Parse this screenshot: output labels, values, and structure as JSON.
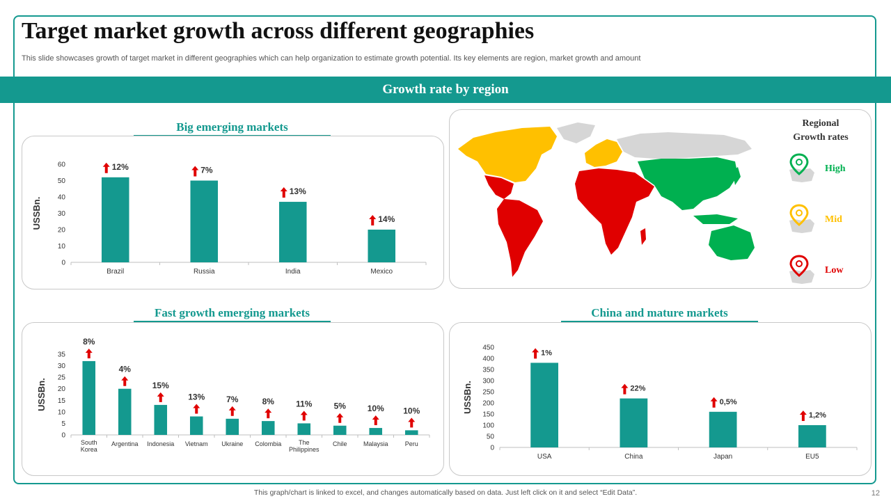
{
  "title": "Target market growth across different geographies",
  "subtitle": "This slide showcases growth of target market in different geographies which can help organization to estimate growth potential. Its key elements are region, market growth and amount",
  "banner": "Growth rate by region",
  "sections": {
    "big": "Big emerging markets",
    "fast": "Fast growth emerging markets",
    "mature": "China and mature markets"
  },
  "legend": {
    "title_line1": "Regional",
    "title_line2": "Growth  rates",
    "items": [
      {
        "label": "High",
        "color": "#00b050"
      },
      {
        "label": "Mid",
        "color": "#ffc000"
      },
      {
        "label": "Low",
        "color": "#e00000"
      }
    ]
  },
  "colors": {
    "bar": "#14998f",
    "arrow": "#e00000",
    "accent": "#14998f"
  },
  "footer": "This graph/chart is linked to excel,  and changes automatically based on data. Just left click on it and select “Edit Data”.",
  "page_number": "12",
  "chart_data": [
    {
      "type": "bar",
      "categories": [
        "Brazil",
        "Russia",
        "India",
        "Mexico"
      ],
      "values": [
        52,
        50,
        37,
        20
      ],
      "annotations": [
        "12%",
        "7%",
        "13%",
        "14%"
      ],
      "ylabel": "USSBn.",
      "ylim": [
        0,
        60
      ],
      "yticks": [
        0,
        10,
        20,
        30,
        40,
        50,
        60
      ]
    },
    {
      "type": "bar",
      "categories": [
        "South Korea",
        "Argentina",
        "Indonesia",
        "Vietnam",
        "Ukraine",
        "Colombia",
        "The Philippines",
        "Chile",
        "Malaysia",
        "Peru"
      ],
      "values": [
        32,
        20,
        13,
        8,
        7,
        6,
        5,
        4,
        3,
        2
      ],
      "annotations": [
        "8%",
        "4%",
        "15%",
        "13%",
        "7%",
        "8%",
        "11%",
        "5%",
        "10%",
        "10%"
      ],
      "ylabel": "USSBn.",
      "ylim": [
        0,
        35
      ],
      "yticks": [
        0,
        5,
        10,
        15,
        20,
        25,
        30,
        35
      ]
    },
    {
      "type": "bar",
      "categories": [
        "USA",
        "China",
        "Japan",
        "EU5"
      ],
      "values": [
        380,
        220,
        160,
        100
      ],
      "annotations": [
        "1%",
        "22%",
        "0,5%",
        "1,2%"
      ],
      "ylabel": "USSBn.",
      "ylim": [
        0,
        450
      ],
      "yticks": [
        0,
        50,
        100,
        150,
        200,
        250,
        300,
        350,
        400,
        450
      ]
    }
  ]
}
